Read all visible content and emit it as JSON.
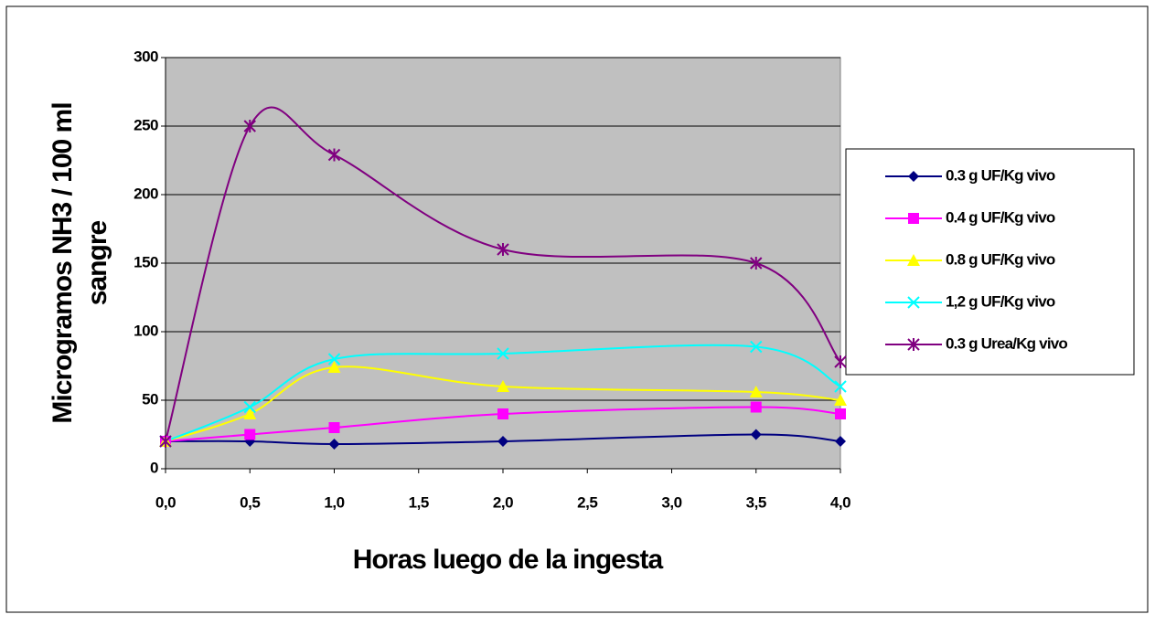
{
  "chart_data": {
    "type": "line",
    "y_label": [
      "Microgramos NH3 / 100 ml",
      "sangre"
    ],
    "x_label": "Horas  luego de la ingesta",
    "x": [
      0,
      0.5,
      1,
      2,
      3.5,
      4
    ],
    "xlim": [
      0,
      4
    ],
    "xticks": [
      {
        "value": 0,
        "label": "0,0"
      },
      {
        "value": 0.5,
        "label": "0,5"
      },
      {
        "value": 1,
        "label": "1,0"
      },
      {
        "value": 1.5,
        "label": "1,5"
      },
      {
        "value": 2,
        "label": "2,0"
      },
      {
        "value": 2.5,
        "label": "2,5"
      },
      {
        "value": 3,
        "label": "3,0"
      },
      {
        "value": 3.5,
        "label": "3,5"
      },
      {
        "value": 4,
        "label": "4,0"
      }
    ],
    "ylim": [
      0,
      300
    ],
    "yticks": [
      0,
      50,
      100,
      150,
      200,
      250,
      300
    ],
    "grid": true,
    "legend": "right",
    "series": [
      {
        "name": "0.3 g UF/Kg vivo",
        "color": "#000080",
        "marker": "diamond",
        "values": [
          20,
          20,
          18,
          20,
          25,
          20
        ]
      },
      {
        "name": "0.4 g UF/Kg vivo",
        "color": "#ff00ff",
        "marker": "square",
        "values": [
          20,
          25,
          30,
          40,
          45,
          40
        ]
      },
      {
        "name": "0.8 g UF/Kg vivo",
        "color": "#ffff00",
        "marker": "triangle",
        "values": [
          20,
          40,
          74,
          60,
          56,
          50
        ]
      },
      {
        "name": "1,2 g UF/Kg vivo",
        "color": "#00ffff",
        "marker": "x",
        "values": [
          20,
          45,
          80,
          84,
          89,
          60
        ]
      },
      {
        "name": "0.3 g Urea/Kg vivo",
        "color": "#800080",
        "marker": "star",
        "values": [
          20,
          250,
          229,
          160,
          150,
          78
        ]
      }
    ]
  }
}
